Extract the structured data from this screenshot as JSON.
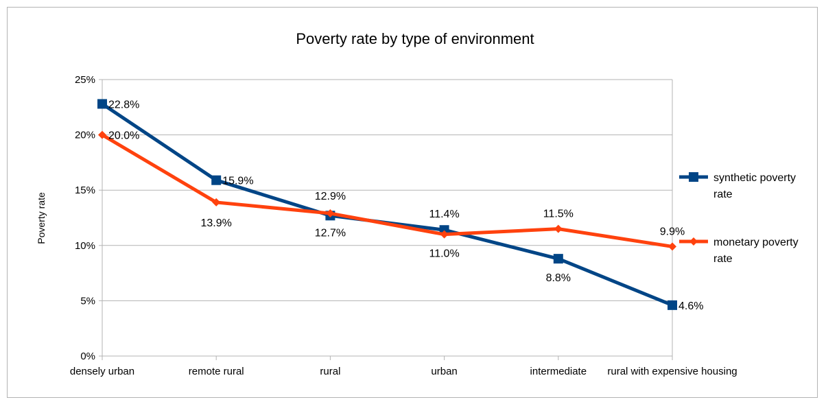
{
  "chart_data": {
    "type": "line",
    "title": "Poverty rate by type of environment",
    "xlabel": "",
    "ylabel": "Poverty rate",
    "categories": [
      "densely urban",
      "remote rural",
      "rural",
      "urban",
      "intermediate",
      "rural with expensive housing"
    ],
    "ylim": [
      0,
      25
    ],
    "yticks": [
      0,
      5,
      10,
      15,
      20,
      25
    ],
    "ytick_labels": [
      "0%",
      "5%",
      "10%",
      "15%",
      "20%",
      "25%"
    ],
    "grid": true,
    "legend_position": "right",
    "series": [
      {
        "name": "synthetic poverty rate",
        "legend_lines": [
          "synthetic poverty",
          "rate"
        ],
        "values": [
          22.8,
          15.9,
          12.7,
          11.4,
          8.8,
          4.6
        ],
        "labels": [
          "22.8%",
          "15.9%",
          "12.7%",
          "11.4%",
          "8.8%",
          "4.6%"
        ],
        "color": "#004586",
        "marker": "square"
      },
      {
        "name": "monetary poverty rate",
        "legend_lines": [
          "monetary poverty",
          "rate"
        ],
        "values": [
          20.0,
          13.9,
          12.9,
          11.0,
          11.5,
          9.9
        ],
        "labels": [
          "20.0%",
          "13.9%",
          "12.9%",
          "11.0%",
          "11.5%",
          "9.9%"
        ],
        "color": "#ff420e",
        "marker": "diamond"
      }
    ]
  }
}
